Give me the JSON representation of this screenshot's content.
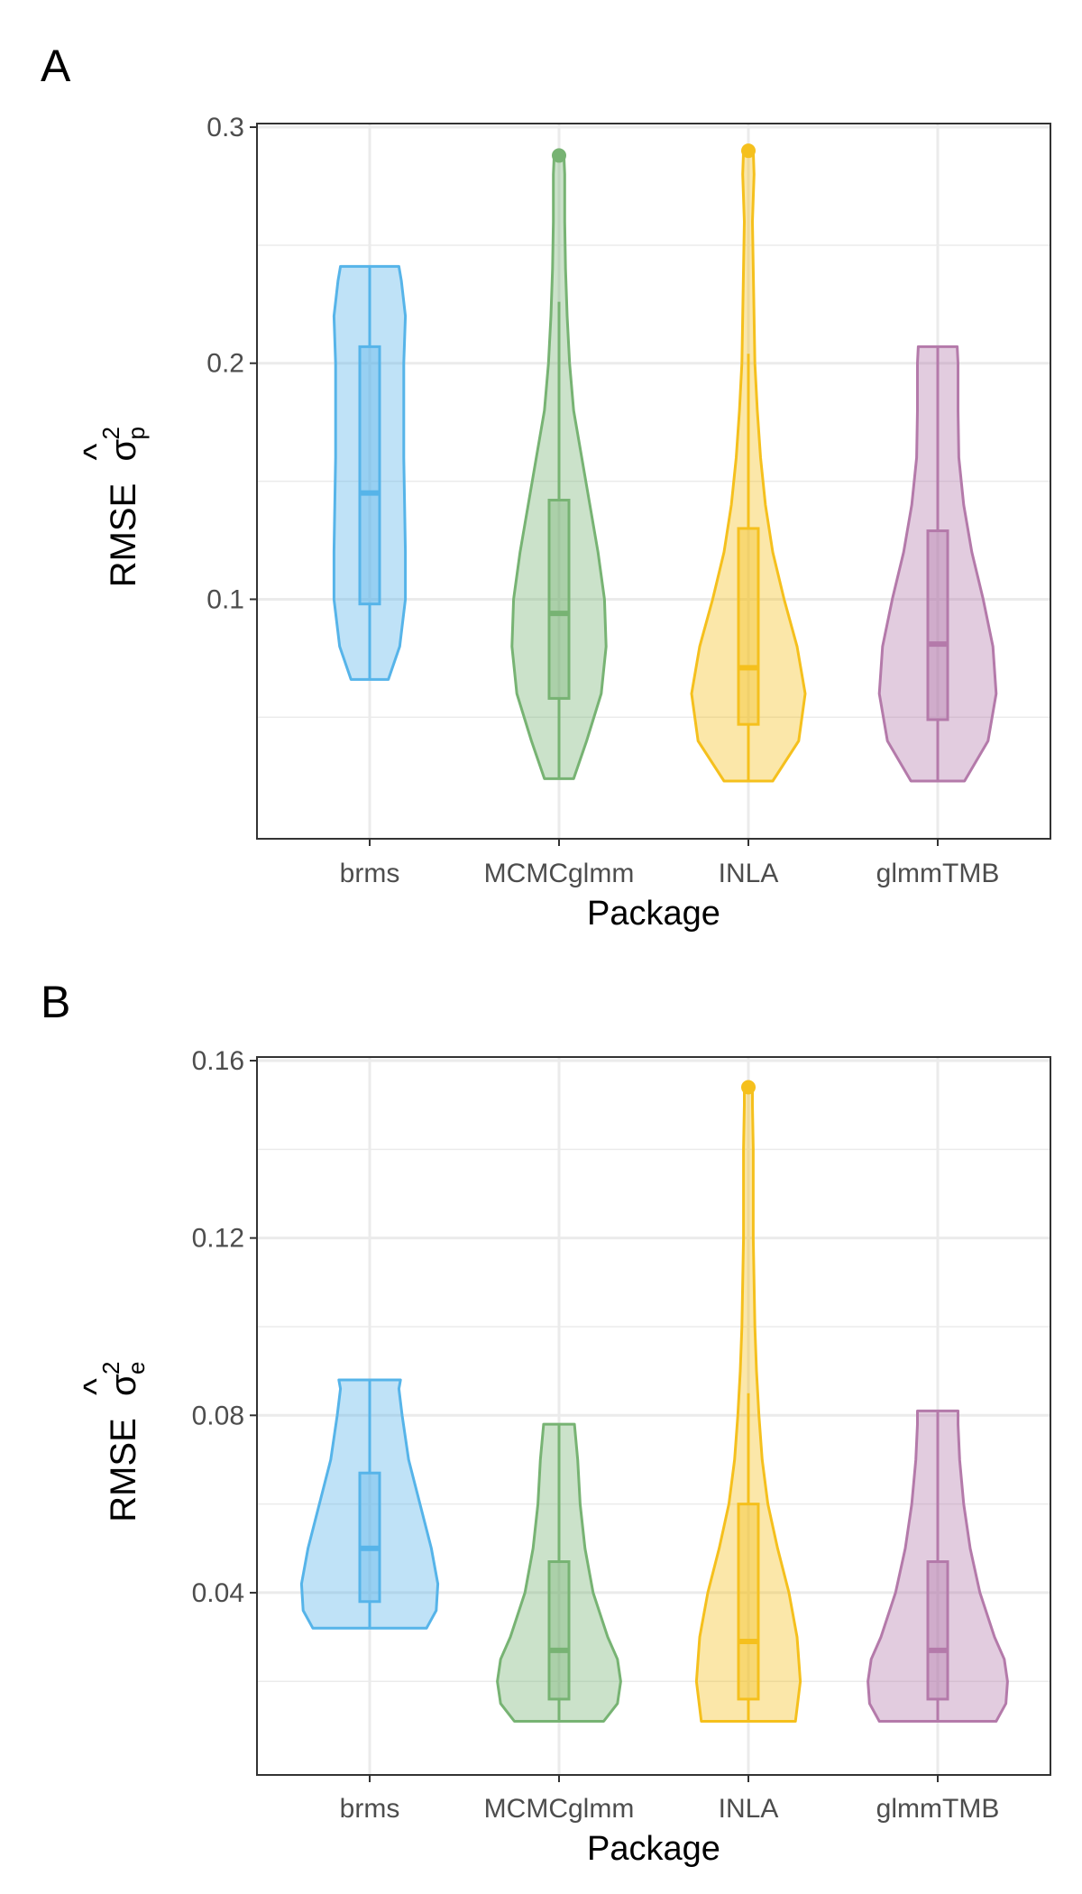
{
  "colors": {
    "brms": "#56B4E9",
    "MCMCglmm": "#77B373",
    "INLA": "#F5C01D",
    "glmmTMB": "#B47AAA",
    "grid": "#ebebeb",
    "panel_border": "#333333"
  },
  "chart_data": [
    {
      "panel_label": "A",
      "type": "violin",
      "xlabel": "Package",
      "ylabel": {
        "prefix": "RMSE",
        "hat": "^",
        "symbol": "σ",
        "superscript": "2",
        "subscript": "p"
      },
      "categories": [
        "brms",
        "MCMCglmm",
        "INLA",
        "glmmTMB"
      ],
      "ylim": [
        0.01,
        0.3
      ],
      "yticks": [
        0.1,
        0.2,
        0.3
      ],
      "ytick_labels": [
        "0.1",
        "0.2",
        "0.3"
      ],
      "grid": true,
      "series": [
        {
          "category": "brms",
          "min": 0.066,
          "q1": 0.098,
          "median": 0.145,
          "q3": 0.207,
          "max": 0.241,
          "whisker_low": 0.066,
          "whisker_high": 0.241,
          "outliers": [],
          "violin": [
            [
              0.066,
              0.23
            ],
            [
              0.08,
              0.37
            ],
            [
              0.1,
              0.44
            ],
            [
              0.12,
              0.44
            ],
            [
              0.14,
              0.43
            ],
            [
              0.16,
              0.42
            ],
            [
              0.18,
              0.42
            ],
            [
              0.2,
              0.42
            ],
            [
              0.22,
              0.44
            ],
            [
              0.235,
              0.39
            ],
            [
              0.241,
              0.36
            ]
          ]
        },
        {
          "category": "MCMCglmm",
          "min": 0.024,
          "q1": 0.058,
          "median": 0.094,
          "q3": 0.142,
          "max": 0.288,
          "whisker_low": 0.024,
          "whisker_high": 0.226,
          "outliers": [
            0.288
          ],
          "violin": [
            [
              0.024,
              0.18
            ],
            [
              0.04,
              0.34
            ],
            [
              0.06,
              0.52
            ],
            [
              0.08,
              0.58
            ],
            [
              0.1,
              0.56
            ],
            [
              0.12,
              0.48
            ],
            [
              0.14,
              0.38
            ],
            [
              0.16,
              0.28
            ],
            [
              0.18,
              0.18
            ],
            [
              0.2,
              0.13
            ],
            [
              0.22,
              0.1
            ],
            [
              0.24,
              0.08
            ],
            [
              0.26,
              0.07
            ],
            [
              0.28,
              0.07
            ],
            [
              0.288,
              0.06
            ]
          ]
        },
        {
          "category": "INLA",
          "min": 0.023,
          "q1": 0.047,
          "median": 0.071,
          "q3": 0.13,
          "max": 0.29,
          "whisker_low": 0.023,
          "whisker_high": 0.204,
          "outliers": [
            0.29
          ],
          "violin": [
            [
              0.023,
              0.3
            ],
            [
              0.04,
              0.62
            ],
            [
              0.06,
              0.7
            ],
            [
              0.08,
              0.6
            ],
            [
              0.1,
              0.44
            ],
            [
              0.12,
              0.3
            ],
            [
              0.14,
              0.21
            ],
            [
              0.16,
              0.15
            ],
            [
              0.18,
              0.11
            ],
            [
              0.2,
              0.08
            ],
            [
              0.22,
              0.07
            ],
            [
              0.24,
              0.06
            ],
            [
              0.26,
              0.05
            ],
            [
              0.28,
              0.07
            ],
            [
              0.29,
              0.06
            ]
          ]
        },
        {
          "category": "glmmTMB",
          "min": 0.023,
          "q1": 0.049,
          "median": 0.081,
          "q3": 0.129,
          "max": 0.207,
          "whisker_low": 0.023,
          "whisker_high": 0.207,
          "outliers": [],
          "violin": [
            [
              0.023,
              0.33
            ],
            [
              0.04,
              0.62
            ],
            [
              0.06,
              0.72
            ],
            [
              0.08,
              0.68
            ],
            [
              0.1,
              0.56
            ],
            [
              0.12,
              0.42
            ],
            [
              0.14,
              0.32
            ],
            [
              0.16,
              0.26
            ],
            [
              0.18,
              0.25
            ],
            [
              0.2,
              0.25
            ],
            [
              0.207,
              0.24
            ]
          ]
        }
      ]
    },
    {
      "panel_label": "B",
      "type": "violin",
      "xlabel": "Package",
      "ylabel": {
        "prefix": "RMSE",
        "hat": "^",
        "symbol": "σ",
        "superscript": "2",
        "subscript": "e"
      },
      "categories": [
        "brms",
        "MCMCglmm",
        "INLA",
        "glmmTMB"
      ],
      "ylim": [
        0.005,
        0.16
      ],
      "yticks": [
        0.04,
        0.08,
        0.12,
        0.16
      ],
      "ytick_labels": [
        "0.04",
        "0.08",
        "0.12",
        "0.16"
      ],
      "grid": true,
      "series": [
        {
          "category": "brms",
          "min": 0.032,
          "q1": 0.038,
          "median": 0.05,
          "q3": 0.067,
          "max": 0.088,
          "whisker_low": 0.032,
          "whisker_high": 0.088,
          "outliers": [],
          "violin": [
            [
              0.032,
              0.7
            ],
            [
              0.036,
              0.82
            ],
            [
              0.042,
              0.84
            ],
            [
              0.05,
              0.76
            ],
            [
              0.06,
              0.62
            ],
            [
              0.07,
              0.48
            ],
            [
              0.08,
              0.4
            ],
            [
              0.086,
              0.36
            ],
            [
              0.088,
              0.38
            ]
          ]
        },
        {
          "category": "MCMCglmm",
          "min": 0.011,
          "q1": 0.016,
          "median": 0.027,
          "q3": 0.047,
          "max": 0.078,
          "whisker_low": 0.011,
          "whisker_high": 0.078,
          "outliers": [],
          "violin": [
            [
              0.011,
              0.55
            ],
            [
              0.015,
              0.72
            ],
            [
              0.02,
              0.76
            ],
            [
              0.025,
              0.72
            ],
            [
              0.03,
              0.6
            ],
            [
              0.04,
              0.42
            ],
            [
              0.05,
              0.32
            ],
            [
              0.06,
              0.26
            ],
            [
              0.07,
              0.23
            ],
            [
              0.076,
              0.2
            ],
            [
              0.078,
              0.19
            ]
          ]
        },
        {
          "category": "INLA",
          "min": 0.011,
          "q1": 0.016,
          "median": 0.029,
          "q3": 0.06,
          "max": 0.154,
          "whisker_low": 0.011,
          "whisker_high": 0.085,
          "outliers": [
            0.154
          ],
          "violin": [
            [
              0.011,
              0.58
            ],
            [
              0.02,
              0.64
            ],
            [
              0.03,
              0.6
            ],
            [
              0.04,
              0.5
            ],
            [
              0.05,
              0.36
            ],
            [
              0.06,
              0.24
            ],
            [
              0.07,
              0.17
            ],
            [
              0.08,
              0.13
            ],
            [
              0.09,
              0.1
            ],
            [
              0.1,
              0.08
            ],
            [
              0.12,
              0.06
            ],
            [
              0.14,
              0.06
            ],
            [
              0.15,
              0.05
            ],
            [
              0.154,
              0.05
            ]
          ]
        },
        {
          "category": "glmmTMB",
          "min": 0.011,
          "q1": 0.016,
          "median": 0.027,
          "q3": 0.047,
          "max": 0.081,
          "whisker_low": 0.011,
          "whisker_high": 0.081,
          "outliers": [],
          "violin": [
            [
              0.011,
              0.72
            ],
            [
              0.015,
              0.84
            ],
            [
              0.02,
              0.86
            ],
            [
              0.025,
              0.82
            ],
            [
              0.03,
              0.7
            ],
            [
              0.04,
              0.52
            ],
            [
              0.05,
              0.4
            ],
            [
              0.06,
              0.32
            ],
            [
              0.07,
              0.27
            ],
            [
              0.078,
              0.25
            ],
            [
              0.081,
              0.25
            ]
          ]
        }
      ]
    }
  ]
}
